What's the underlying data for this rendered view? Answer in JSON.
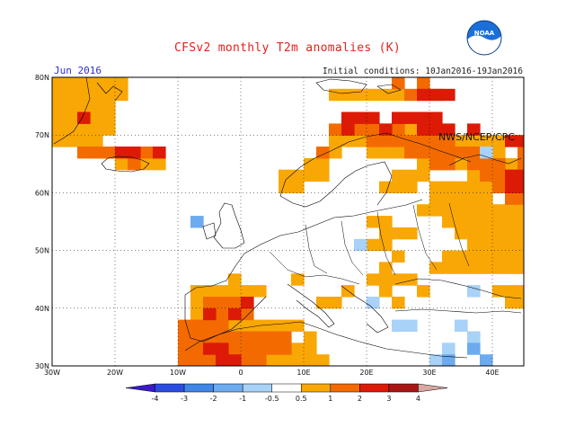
{
  "title": "CFSv2 monthly T2m anomalies (K)",
  "period": "Jun 2016",
  "initial_conditions": "Initial conditions: 10Jan2016-19Jan2016",
  "agency": "NWS/NCEP/CPC",
  "logo_text": "NOAA",
  "map": {
    "lon_range": [
      -30,
      45
    ],
    "lat_range": [
      30,
      80
    ],
    "lat_ticks": [
      "30N",
      "40N",
      "50N",
      "60N",
      "70N",
      "80N"
    ],
    "lon_ticks": [
      "30W",
      "20W",
      "10W",
      "0",
      "10E",
      "20E",
      "30E",
      "40E"
    ]
  },
  "colorbar": {
    "labels": [
      "-4",
      "-3",
      "-2",
      "-1",
      "-0.5",
      "0.5",
      "1",
      "2",
      "3",
      "4"
    ],
    "colors": [
      "#3a1ac8",
      "#2a4ce0",
      "#3f86e6",
      "#6cabef",
      "#a8d2f7",
      "#ffffff",
      "#f9a704",
      "#f36b00",
      "#dc1a05",
      "#a81616",
      "#d9a89e"
    ]
  },
  "anomaly_colors": {
    "0.5-1": "#f9a704",
    "1-2": "#f36b00",
    "2-3": "#dc1a05",
    "3-4": "#a81616",
    "neg-0.5": "#a8d2f7",
    "neg-1": "#6cabef",
    "neg-2": "#3f86e6"
  },
  "regions": [
    {
      "class": "0.5-1",
      "cells": [
        [
          -30,
          68
        ],
        [
          -28,
          68
        ],
        [
          -26,
          68
        ],
        [
          -24,
          68
        ],
        [
          -30,
          70
        ],
        [
          -28,
          70
        ],
        [
          -26,
          70
        ],
        [
          -24,
          70
        ],
        [
          -22,
          70
        ],
        [
          -30,
          72
        ],
        [
          -28,
          72
        ],
        [
          -26,
          72
        ],
        [
          -24,
          72
        ],
        [
          -22,
          72
        ],
        [
          -30,
          74
        ],
        [
          -28,
          74
        ],
        [
          -26,
          74
        ],
        [
          -24,
          74
        ],
        [
          -22,
          74
        ],
        [
          -30,
          76
        ],
        [
          -28,
          76
        ],
        [
          -26,
          76
        ],
        [
          -24,
          76
        ],
        [
          -22,
          76
        ],
        [
          -20,
          76
        ],
        [
          -30,
          78
        ],
        [
          -28,
          78
        ],
        [
          -26,
          78
        ],
        [
          -24,
          78
        ],
        [
          -22,
          78
        ],
        [
          -20,
          78
        ],
        [
          -24,
          66
        ],
        [
          -22,
          66
        ],
        [
          -20,
          64
        ],
        [
          -16,
          64
        ],
        [
          -18,
          64
        ],
        [
          -14,
          64
        ],
        [
          -2,
          36
        ],
        [
          0,
          36
        ],
        [
          2,
          36
        ],
        [
          4,
          36
        ],
        [
          6,
          36
        ],
        [
          8,
          36
        ],
        [
          -6,
          38
        ],
        [
          -8,
          38
        ],
        [
          -8,
          40
        ],
        [
          -8,
          42
        ],
        [
          -6,
          42
        ],
        [
          -4,
          42
        ],
        [
          -2,
          42
        ],
        [
          0,
          42
        ],
        [
          2,
          42
        ],
        [
          -2,
          44
        ],
        [
          4,
          30
        ],
        [
          6,
          30
        ],
        [
          8,
          30
        ],
        [
          10,
          30
        ],
        [
          12,
          30
        ],
        [
          8,
          32
        ],
        [
          10,
          32
        ],
        [
          10,
          34
        ],
        [
          14,
          40
        ],
        [
          16,
          42
        ],
        [
          8,
          44
        ],
        [
          12,
          40
        ],
        [
          6,
          60
        ],
        [
          8,
          60
        ],
        [
          6,
          62
        ],
        [
          8,
          62
        ],
        [
          10,
          62
        ],
        [
          12,
          62
        ],
        [
          10,
          64
        ],
        [
          12,
          64
        ],
        [
          12,
          66
        ],
        [
          14,
          66
        ],
        [
          14,
          68
        ],
        [
          16,
          68
        ],
        [
          18,
          68
        ],
        [
          20,
          66
        ],
        [
          22,
          66
        ],
        [
          24,
          66
        ],
        [
          26,
          66
        ],
        [
          28,
          64
        ],
        [
          30,
          64
        ],
        [
          32,
          64
        ],
        [
          34,
          64
        ],
        [
          36,
          62
        ],
        [
          38,
          60
        ],
        [
          40,
          60
        ],
        [
          42,
          60
        ],
        [
          44,
          60
        ],
        [
          30,
          58
        ],
        [
          32,
          58
        ],
        [
          34,
          58
        ],
        [
          36,
          58
        ],
        [
          38,
          58
        ],
        [
          28,
          56
        ],
        [
          30,
          56
        ],
        [
          32,
          56
        ],
        [
          34,
          56
        ],
        [
          36,
          56
        ],
        [
          38,
          56
        ],
        [
          40,
          56
        ],
        [
          42,
          56
        ],
        [
          44,
          56
        ],
        [
          32,
          54
        ],
        [
          34,
          54
        ],
        [
          36,
          54
        ],
        [
          38,
          54
        ],
        [
          40,
          54
        ],
        [
          42,
          54
        ],
        [
          44,
          54
        ],
        [
          34,
          52
        ],
        [
          36,
          52
        ],
        [
          38,
          52
        ],
        [
          40,
          52
        ],
        [
          42,
          52
        ],
        [
          44,
          52
        ],
        [
          36,
          50
        ],
        [
          38,
          50
        ],
        [
          40,
          50
        ],
        [
          42,
          50
        ],
        [
          44,
          50
        ],
        [
          32,
          48
        ],
        [
          34,
          48
        ],
        [
          36,
          48
        ],
        [
          38,
          48
        ],
        [
          40,
          48
        ],
        [
          42,
          48
        ],
        [
          44,
          48
        ],
        [
          30,
          46
        ],
        [
          32,
          46
        ],
        [
          34,
          46
        ],
        [
          36,
          46
        ],
        [
          38,
          46
        ],
        [
          40,
          46
        ],
        [
          42,
          46
        ],
        [
          44,
          46
        ],
        [
          22,
          52
        ],
        [
          24,
          52
        ],
        [
          26,
          52
        ],
        [
          20,
          50
        ],
        [
          22,
          50
        ],
        [
          24,
          48
        ],
        [
          22,
          46
        ],
        [
          20,
          44
        ],
        [
          22,
          44
        ],
        [
          24,
          44
        ],
        [
          26,
          44
        ],
        [
          28,
          42
        ],
        [
          24,
          40
        ],
        [
          22,
          42
        ],
        [
          40,
          42
        ],
        [
          42,
          42
        ],
        [
          44,
          42
        ],
        [
          42,
          40
        ],
        [
          44,
          40
        ],
        [
          20,
          54
        ],
        [
          22,
          54
        ],
        [
          22,
          60
        ],
        [
          24,
          60
        ],
        [
          26,
          60
        ],
        [
          24,
          62
        ],
        [
          26,
          62
        ],
        [
          28,
          62
        ],
        [
          30,
          60
        ],
        [
          32,
          60
        ],
        [
          34,
          60
        ],
        [
          36,
          60
        ],
        [
          14,
          76
        ],
        [
          16,
          76
        ],
        [
          18,
          76
        ],
        [
          20,
          76
        ],
        [
          22,
          76
        ],
        [
          24,
          76
        ],
        [
          28,
          76
        ],
        [
          30,
          76
        ],
        [
          26,
          70
        ],
        [
          28,
          70
        ],
        [
          30,
          70
        ],
        [
          34,
          68
        ],
        [
          36,
          68
        ],
        [
          38,
          68
        ],
        [
          40,
          68
        ],
        [
          42,
          68
        ],
        [
          44,
          66
        ],
        [
          38,
          66
        ],
        [
          40,
          66
        ],
        [
          42,
          64
        ],
        [
          44,
          64
        ]
      ]
    },
    {
      "class": "1-2",
      "cells": [
        [
          -24,
          66
        ],
        [
          -26,
          66
        ],
        [
          -22,
          66
        ],
        [
          -18,
          64
        ],
        [
          -16,
          66
        ],
        [
          -6,
          36
        ],
        [
          -4,
          36
        ],
        [
          -4,
          38
        ],
        [
          -2,
          38
        ],
        [
          0,
          38
        ],
        [
          -6,
          40
        ],
        [
          -4,
          40
        ],
        [
          -2,
          40
        ],
        [
          -10,
          36
        ],
        [
          -8,
          36
        ],
        [
          -10,
          34
        ],
        [
          -8,
          34
        ],
        [
          -6,
          34
        ],
        [
          -4,
          34
        ],
        [
          -2,
          34
        ],
        [
          0,
          34
        ],
        [
          2,
          34
        ],
        [
          4,
          34
        ],
        [
          6,
          34
        ],
        [
          -10,
          32
        ],
        [
          -8,
          32
        ],
        [
          -6,
          32
        ],
        [
          -4,
          32
        ],
        [
          -2,
          32
        ],
        [
          0,
          32
        ],
        [
          2,
          32
        ],
        [
          4,
          32
        ],
        [
          6,
          32
        ],
        [
          -10,
          30
        ],
        [
          -8,
          30
        ],
        [
          -6,
          30
        ],
        [
          -4,
          30
        ],
        [
          -2,
          30
        ],
        [
          0,
          30
        ],
        [
          2,
          30
        ],
        [
          -8,
          28
        ],
        [
          -6,
          28
        ],
        [
          12,
          66
        ],
        [
          14,
          70
        ],
        [
          16,
          70
        ],
        [
          18,
          70
        ],
        [
          20,
          70
        ],
        [
          22,
          70
        ],
        [
          24,
          70
        ],
        [
          20,
          68
        ],
        [
          22,
          68
        ],
        [
          24,
          68
        ],
        [
          26,
          68
        ],
        [
          28,
          68
        ],
        [
          30,
          68
        ],
        [
          32,
          68
        ],
        [
          26,
          66
        ],
        [
          28,
          66
        ],
        [
          30,
          66
        ],
        [
          32,
          66
        ],
        [
          34,
          66
        ],
        [
          36,
          66
        ],
        [
          30,
          64
        ],
        [
          32,
          64
        ],
        [
          36,
          64
        ],
        [
          38,
          64
        ],
        [
          40,
          64
        ],
        [
          38,
          62
        ],
        [
          40,
          62
        ],
        [
          42,
          62
        ],
        [
          44,
          62
        ],
        [
          40,
          60
        ],
        [
          42,
          58
        ],
        [
          44,
          58
        ],
        [
          26,
          76
        ],
        [
          24,
          78
        ],
        [
          28,
          78
        ],
        [
          44,
          64
        ],
        [
          44,
          66
        ]
      ]
    },
    {
      "class": "2-3",
      "cells": [
        [
          16,
          72
        ],
        [
          18,
          72
        ],
        [
          20,
          72
        ],
        [
          22,
          70
        ],
        [
          24,
          72
        ],
        [
          26,
          72
        ],
        [
          28,
          72
        ],
        [
          30,
          72
        ],
        [
          28,
          70
        ],
        [
          30,
          70
        ],
        [
          32,
          70
        ],
        [
          36,
          70
        ],
        [
          42,
          68
        ],
        [
          44,
          68
        ],
        [
          42,
          62
        ],
        [
          44,
          62
        ],
        [
          42,
          60
        ],
        [
          44,
          60
        ],
        [
          -20,
          66
        ],
        [
          -18,
          66
        ],
        [
          -14,
          66
        ],
        [
          -2,
          38
        ],
        [
          0,
          40
        ],
        [
          -6,
          38
        ],
        [
          -4,
          30
        ],
        [
          -2,
          30
        ],
        [
          -6,
          32
        ],
        [
          -4,
          32
        ],
        [
          28,
          76
        ],
        [
          30,
          76
        ],
        [
          32,
          76
        ],
        [
          -26,
          72
        ],
        [
          16,
          70
        ]
      ]
    },
    {
      "class": "neg-0.5",
      "cells": [
        [
          -8,
          54
        ],
        [
          18,
          50
        ],
        [
          38,
          66
        ],
        [
          36,
          42
        ],
        [
          24,
          36
        ],
        [
          30,
          30
        ],
        [
          32,
          32
        ],
        [
          36,
          34
        ],
        [
          34,
          36
        ],
        [
          26,
          36
        ],
        [
          20,
          40
        ]
      ]
    },
    {
      "class": "neg-1",
      "cells": [
        [
          -8,
          54
        ],
        [
          36,
          32
        ],
        [
          32,
          30
        ],
        [
          38,
          30
        ]
      ]
    }
  ]
}
